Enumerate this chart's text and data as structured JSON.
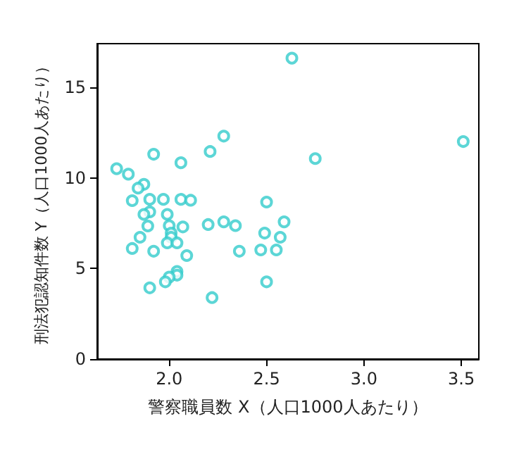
{
  "chart_data": {
    "type": "scatter",
    "xlabel": "警察職員数 X（人口1000人あたり）",
    "ylabel": "刑法犯認知件数 Y（人口1000人あたり）",
    "xlim": [
      1.63,
      3.59
    ],
    "xticks": [
      {
        "value": 2,
        "label": "2.0"
      },
      {
        "value": 2.5,
        "label": "2.5"
      },
      {
        "value": 3,
        "label": "3.0"
      },
      {
        "value": 3.5,
        "label": "3.5"
      }
    ],
    "ylim": [
      0,
      17.4
    ],
    "yticks": [
      0,
      5,
      10,
      15
    ],
    "grid": false,
    "marker": "circle",
    "x": [
      2.63,
      2.28,
      2.21,
      1.92,
      2.06,
      1.73,
      1.79,
      1.87,
      1.84,
      1.81,
      1.9,
      1.97,
      2.06,
      2.11,
      2.5,
      1.9,
      1.87,
      1.99,
      1.89,
      2.0,
      2.07,
      2.2,
      2.28,
      2.34,
      2.01,
      2.49,
      2.59,
      1.85,
      2.01,
      2.57,
      1.99,
      2.04,
      1.81,
      1.92,
      2.36,
      2.47,
      2.55,
      2.09,
      2.04,
      2.04,
      2.0,
      1.98,
      2.5,
      1.9,
      2.22,
      2.75,
      3.51
    ],
    "series": [
      {
        "color": "#33cccc",
        "values": [
          16.6,
          12.3,
          11.45,
          11.3,
          10.83,
          10.5,
          10.2,
          9.64,
          9.43,
          8.74,
          8.81,
          8.81,
          8.81,
          8.76,
          8.66,
          8.12,
          7.98,
          7.98,
          7.34,
          7.36,
          7.29,
          7.42,
          7.57,
          7.36,
          6.95,
          6.95,
          7.57,
          6.72,
          6.72,
          6.72,
          6.41,
          6.41,
          6.1,
          5.95,
          5.95,
          6.02,
          6.02,
          5.71,
          4.83,
          4.63,
          4.52,
          4.26,
          4.26,
          3.93,
          3.39,
          11.06,
          12.0
        ]
      }
    ]
  }
}
